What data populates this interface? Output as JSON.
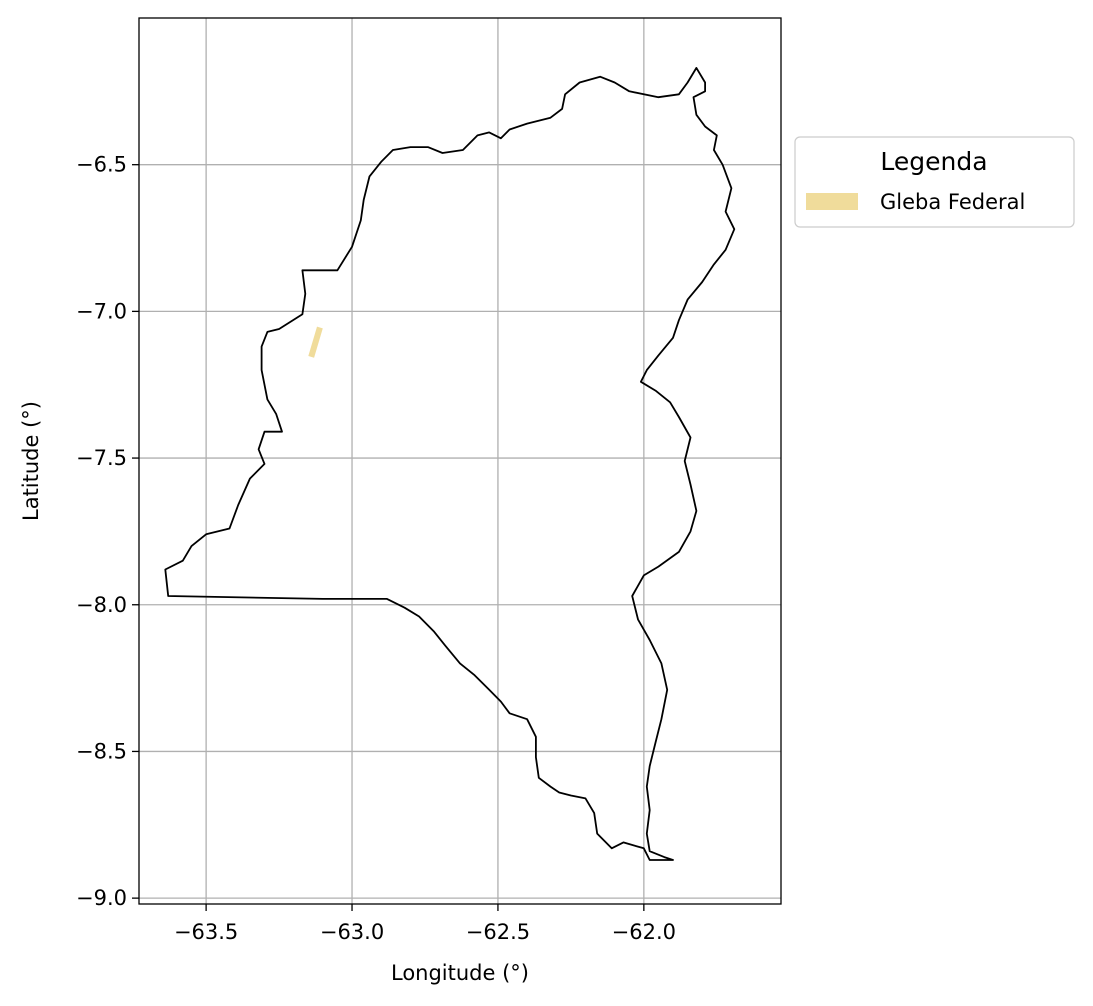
{
  "chart_data": {
    "type": "map",
    "title": "",
    "xlabel": "Longitude (°)",
    "ylabel": "Latitude (°)",
    "xlim": [
      -63.73,
      -61.53
    ],
    "ylim": [
      -9.02,
      -6.0
    ],
    "x_ticks": [
      -63.5,
      -63.0,
      -62.5,
      -62.0
    ],
    "x_tick_labels": [
      "−63.5",
      "−63.0",
      "−62.5",
      "−62.0"
    ],
    "y_ticks": [
      -6.5,
      -7.0,
      -7.5,
      -8.0,
      -8.5,
      -9.0
    ],
    "y_tick_labels": [
      "−6.5",
      "−7.0",
      "−7.5",
      "−8.0",
      "−8.5",
      "−9.0"
    ],
    "grid": true,
    "boundary": {
      "name": "municipality-boundary",
      "color": "#000000",
      "coords": [
        [
          -63.63,
          -7.97
        ],
        [
          -63.64,
          -7.88
        ],
        [
          -63.58,
          -7.85
        ],
        [
          -63.55,
          -7.8
        ],
        [
          -63.5,
          -7.76
        ],
        [
          -63.42,
          -7.74
        ],
        [
          -63.39,
          -7.66
        ],
        [
          -63.35,
          -7.57
        ],
        [
          -63.3,
          -7.52
        ],
        [
          -63.32,
          -7.47
        ],
        [
          -63.3,
          -7.41
        ],
        [
          -63.24,
          -7.41
        ],
        [
          -63.26,
          -7.35
        ],
        [
          -63.29,
          -7.3
        ],
        [
          -63.31,
          -7.2
        ],
        [
          -63.31,
          -7.12
        ],
        [
          -63.29,
          -7.07
        ],
        [
          -63.25,
          -7.06
        ],
        [
          -63.17,
          -7.01
        ],
        [
          -63.16,
          -6.94
        ],
        [
          -63.17,
          -6.86
        ],
        [
          -63.05,
          -6.86
        ],
        [
          -63.0,
          -6.78
        ],
        [
          -62.97,
          -6.69
        ],
        [
          -62.96,
          -6.62
        ],
        [
          -62.94,
          -6.54
        ],
        [
          -62.9,
          -6.49
        ],
        [
          -62.86,
          -6.45
        ],
        [
          -62.8,
          -6.44
        ],
        [
          -62.74,
          -6.44
        ],
        [
          -62.69,
          -6.46
        ],
        [
          -62.62,
          -6.45
        ],
        [
          -62.57,
          -6.4
        ],
        [
          -62.53,
          -6.39
        ],
        [
          -62.49,
          -6.41
        ],
        [
          -62.46,
          -6.38
        ],
        [
          -62.4,
          -6.36
        ],
        [
          -62.32,
          -6.34
        ],
        [
          -62.28,
          -6.31
        ],
        [
          -62.27,
          -6.26
        ],
        [
          -62.22,
          -6.22
        ],
        [
          -62.15,
          -6.2
        ],
        [
          -62.1,
          -6.22
        ],
        [
          -62.05,
          -6.25
        ],
        [
          -61.95,
          -6.27
        ],
        [
          -61.88,
          -6.26
        ],
        [
          -61.85,
          -6.22
        ],
        [
          -61.82,
          -6.17
        ],
        [
          -61.79,
          -6.22
        ],
        [
          -61.79,
          -6.25
        ],
        [
          -61.83,
          -6.27
        ],
        [
          -61.82,
          -6.33
        ],
        [
          -61.79,
          -6.37
        ],
        [
          -61.75,
          -6.4
        ],
        [
          -61.76,
          -6.45
        ],
        [
          -61.73,
          -6.5
        ],
        [
          -61.7,
          -6.58
        ],
        [
          -61.72,
          -6.66
        ],
        [
          -61.69,
          -6.72
        ],
        [
          -61.72,
          -6.79
        ],
        [
          -61.76,
          -6.84
        ],
        [
          -61.8,
          -6.9
        ],
        [
          -61.85,
          -6.96
        ],
        [
          -61.88,
          -7.03
        ],
        [
          -61.9,
          -7.09
        ],
        [
          -61.95,
          -7.15
        ],
        [
          -61.99,
          -7.2
        ],
        [
          -62.01,
          -7.24
        ],
        [
          -61.96,
          -7.27
        ],
        [
          -61.91,
          -7.31
        ],
        [
          -61.88,
          -7.36
        ],
        [
          -61.84,
          -7.43
        ],
        [
          -61.86,
          -7.51
        ],
        [
          -61.84,
          -7.59
        ],
        [
          -61.82,
          -7.68
        ],
        [
          -61.84,
          -7.75
        ],
        [
          -61.88,
          -7.82
        ],
        [
          -61.95,
          -7.87
        ],
        [
          -62.0,
          -7.9
        ],
        [
          -62.04,
          -7.97
        ],
        [
          -62.02,
          -8.05
        ],
        [
          -61.98,
          -8.12
        ],
        [
          -61.94,
          -8.2
        ],
        [
          -61.92,
          -8.29
        ],
        [
          -61.94,
          -8.39
        ],
        [
          -61.96,
          -8.47
        ],
        [
          -61.98,
          -8.55
        ],
        [
          -61.99,
          -8.62
        ],
        [
          -61.98,
          -8.7
        ],
        [
          -61.99,
          -8.78
        ],
        [
          -61.98,
          -8.84
        ],
        [
          -61.93,
          -8.86
        ],
        [
          -61.9,
          -8.87
        ],
        [
          -61.98,
          -8.87
        ],
        [
          -62.0,
          -8.83
        ],
        [
          -62.07,
          -8.81
        ],
        [
          -62.11,
          -8.83
        ],
        [
          -62.16,
          -8.78
        ],
        [
          -62.17,
          -8.71
        ],
        [
          -62.2,
          -8.66
        ],
        [
          -62.25,
          -8.65
        ],
        [
          -62.29,
          -8.64
        ],
        [
          -62.32,
          -8.62
        ],
        [
          -62.36,
          -8.59
        ],
        [
          -62.37,
          -8.52
        ],
        [
          -62.37,
          -8.45
        ],
        [
          -62.4,
          -8.39
        ],
        [
          -62.46,
          -8.37
        ],
        [
          -62.49,
          -8.33
        ],
        [
          -62.53,
          -8.29
        ],
        [
          -62.58,
          -8.24
        ],
        [
          -62.63,
          -8.2
        ],
        [
          -62.68,
          -8.14
        ],
        [
          -62.72,
          -8.09
        ],
        [
          -62.77,
          -8.04
        ],
        [
          -62.82,
          -8.01
        ],
        [
          -62.88,
          -7.98
        ],
        [
          -63.1,
          -7.98
        ],
        [
          -63.63,
          -7.97
        ]
      ]
    },
    "features": [
      {
        "name": "Gleba Federal",
        "color": "#f0dc9b",
        "coords": [
          [
            -63.14,
            -7.155
          ],
          [
            -63.11,
            -7.055
          ]
        ]
      }
    ],
    "legend": {
      "title": "Legenda",
      "placement": "outside-upper-right",
      "entries": [
        {
          "label": "Gleba Federal",
          "color": "#f0dc9b"
        }
      ]
    }
  }
}
